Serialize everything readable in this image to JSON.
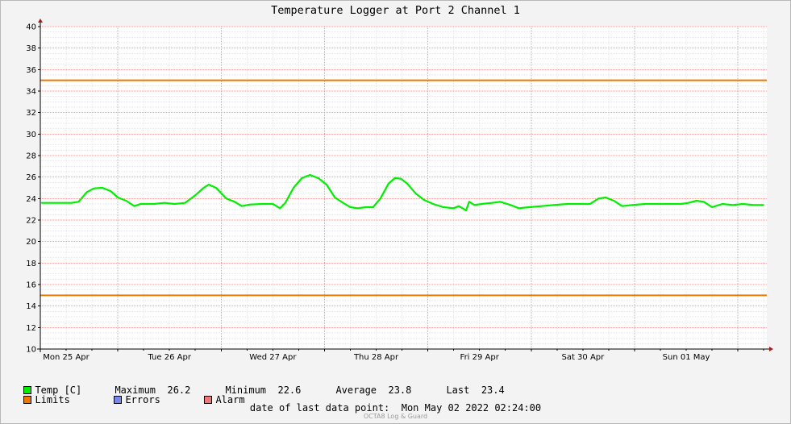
{
  "title": "Temperature Logger at Port 2 Channel 1",
  "chart_data": {
    "type": "line",
    "title": "Temperature Logger at Port 2 Channel 1",
    "xlabel": "",
    "ylabel": "",
    "ylim": [
      10,
      40
    ],
    "yticks": [
      10,
      12,
      14,
      16,
      18,
      20,
      22,
      24,
      26,
      28,
      30,
      32,
      34,
      36,
      38,
      40
    ],
    "xlim_days": [
      -0.25,
      6.78
    ],
    "xticks": [
      {
        "label": "Mon 25 Apr",
        "day": 0
      },
      {
        "label": "Tue 26 Apr",
        "day": 1
      },
      {
        "label": "Wed 27 Apr",
        "day": 2
      },
      {
        "label": "Thu 28 Apr",
        "day": 3
      },
      {
        "label": "Fri 29 Apr",
        "day": 4
      },
      {
        "label": "Sat 30 Apr",
        "day": 5
      },
      {
        "label": "Sun 01 May",
        "day": 6
      }
    ],
    "grid": true,
    "series": [
      {
        "name": "Temp [C]",
        "color": "#00ee00",
        "points": [
          [
            -0.24,
            23.6
          ],
          [
            -0.15,
            23.6
          ],
          [
            -0.05,
            23.6
          ],
          [
            0.05,
            23.6
          ],
          [
            0.12,
            23.7
          ],
          [
            0.2,
            24.6
          ],
          [
            0.27,
            24.95
          ],
          [
            0.35,
            25.0
          ],
          [
            0.43,
            24.7
          ],
          [
            0.5,
            24.1
          ],
          [
            0.58,
            23.8
          ],
          [
            0.66,
            23.3
          ],
          [
            0.72,
            23.5
          ],
          [
            0.85,
            23.5
          ],
          [
            0.95,
            23.6
          ],
          [
            1.05,
            23.5
          ],
          [
            1.15,
            23.6
          ],
          [
            1.25,
            24.3
          ],
          [
            1.33,
            25.0
          ],
          [
            1.38,
            25.3
          ],
          [
            1.45,
            25.0
          ],
          [
            1.55,
            24.0
          ],
          [
            1.63,
            23.7
          ],
          [
            1.7,
            23.3
          ],
          [
            1.78,
            23.45
          ],
          [
            1.9,
            23.5
          ],
          [
            2.0,
            23.5
          ],
          [
            2.07,
            23.1
          ],
          [
            2.12,
            23.6
          ],
          [
            2.2,
            25.0
          ],
          [
            2.28,
            25.9
          ],
          [
            2.36,
            26.2
          ],
          [
            2.44,
            25.9
          ],
          [
            2.52,
            25.3
          ],
          [
            2.6,
            24.1
          ],
          [
            2.68,
            23.6
          ],
          [
            2.75,
            23.2
          ],
          [
            2.82,
            23.1
          ],
          [
            2.9,
            23.2
          ],
          [
            2.97,
            23.2
          ],
          [
            3.04,
            24.0
          ],
          [
            3.12,
            25.4
          ],
          [
            3.18,
            25.9
          ],
          [
            3.24,
            25.85
          ],
          [
            3.3,
            25.4
          ],
          [
            3.38,
            24.5
          ],
          [
            3.46,
            23.9
          ],
          [
            3.55,
            23.5
          ],
          [
            3.65,
            23.2
          ],
          [
            3.75,
            23.1
          ],
          [
            3.8,
            23.3
          ],
          [
            3.87,
            22.9
          ],
          [
            3.9,
            23.7
          ],
          [
            3.95,
            23.4
          ],
          [
            4.02,
            23.5
          ],
          [
            4.12,
            23.6
          ],
          [
            4.2,
            23.7
          ],
          [
            4.3,
            23.4
          ],
          [
            4.38,
            23.1
          ],
          [
            4.48,
            23.2
          ],
          [
            4.6,
            23.3
          ],
          [
            4.72,
            23.4
          ],
          [
            4.85,
            23.5
          ],
          [
            4.97,
            23.5
          ],
          [
            5.07,
            23.5
          ],
          [
            5.15,
            24.0
          ],
          [
            5.22,
            24.1
          ],
          [
            5.3,
            23.8
          ],
          [
            5.38,
            23.3
          ],
          [
            5.48,
            23.4
          ],
          [
            5.6,
            23.5
          ],
          [
            5.72,
            23.5
          ],
          [
            5.85,
            23.5
          ],
          [
            5.95,
            23.5
          ],
          [
            6.02,
            23.6
          ],
          [
            6.1,
            23.8
          ],
          [
            6.17,
            23.7
          ],
          [
            6.25,
            23.2
          ],
          [
            6.35,
            23.5
          ],
          [
            6.45,
            23.4
          ],
          [
            6.55,
            23.5
          ],
          [
            6.65,
            23.4
          ],
          [
            6.75,
            23.4
          ]
        ]
      },
      {
        "name": "Limits",
        "color": "#ee7700",
        "values": [
          35,
          15
        ]
      }
    ]
  },
  "legend": {
    "temp_label": "Temp [C]",
    "temp_color": "#00ee00",
    "max_label": "Maximum",
    "max_value": "26.2",
    "min_label": "Minimum",
    "min_value": "22.6",
    "avg_label": "Average",
    "avg_value": "23.8",
    "last_label": "Last",
    "last_value": "23.4",
    "limits_label": "Limits",
    "limits_color": "#ee7700",
    "errors_label": "Errors",
    "errors_color": "#7788ee",
    "alarm_label": "Alarm",
    "alarm_color": "#ee7777"
  },
  "footer": {
    "date_label": "date of last data point:",
    "date_value": "Mon May 02 2022 02:24:00",
    "watermark": "OCTA8 Log & Guard"
  }
}
